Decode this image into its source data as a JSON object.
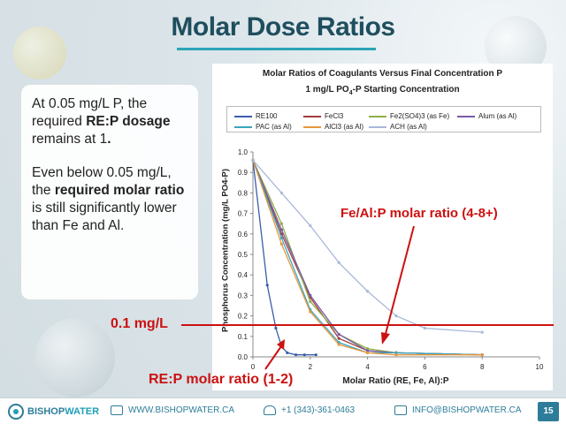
{
  "slide": {
    "title": "Molar Dose Ratios",
    "page_number": "15",
    "colors": {
      "title": "#1f4e5e",
      "accent": "#2aa4b7",
      "annotation": "#cc1111"
    }
  },
  "textbox": {
    "p1_a": "At 0.05 mg/L P, the required ",
    "p1_b": "RE:P dosage",
    "p1_c": " remains at 1",
    "p1_d": ".",
    "p2_a": "Even below 0.05 mg/L, the ",
    "p2_b": "required molar ratio",
    "p2_c": " is still significantly lower than Fe and Al."
  },
  "annotations": {
    "fe_al": "Fe/Al:P molar ratio (4-8+)",
    "line": "0.1 mg/L",
    "re": "RE:P molar ratio (1-2)"
  },
  "footer": {
    "brand_a": "BISHOP",
    "brand_b": "WATER",
    "web": "WWW.BISHOPWATER.CA",
    "phone": "+1 (343)-361-0463",
    "email": "INFO@BISHOPWATER.CA"
  },
  "chart_data": {
    "type": "line",
    "title": "Molar Ratios of Coagulants Versus Final Concentration P",
    "subtitle_a": "1 mg/L PO",
    "subtitle_sub": "4",
    "subtitle_b": "-P Starting Concentration",
    "xlabel": "Molar Ratio (RE, Fe, Al):P",
    "ylabel": "Phosphorus Concentration (mg/L PO4-P)",
    "xlim": [
      0,
      10
    ],
    "ylim": [
      0,
      1.0
    ],
    "x_ticks": [
      "0",
      "2",
      "4",
      "6",
      "8",
      "10"
    ],
    "y_ticks": [
      "0.0",
      "0.1",
      "0.2",
      "0.3",
      "0.4",
      "0.5",
      "0.6",
      "0.7",
      "0.8",
      "0.9",
      "1.0"
    ],
    "reference_line_y": 0.1,
    "legend_placement": "top",
    "series": [
      {
        "name": "RE100",
        "color": "#3a5ea8",
        "x": [
          0,
          0.5,
          0.8,
          1.0,
          1.2,
          1.5,
          1.8,
          2.2
        ],
        "y": [
          0.96,
          0.35,
          0.14,
          0.05,
          0.02,
          0.01,
          0.01,
          0.01
        ]
      },
      {
        "name": "FeCl3",
        "color": "#a33b3b",
        "x": [
          0,
          1,
          2,
          3,
          4,
          5,
          8
        ],
        "y": [
          0.96,
          0.6,
          0.29,
          0.09,
          0.03,
          0.02,
          0.01
        ]
      },
      {
        "name": "Fe2(SO4)3 (as Fe)",
        "color": "#8db046",
        "x": [
          0,
          1,
          2,
          3,
          4,
          5,
          8
        ],
        "y": [
          0.96,
          0.65,
          0.27,
          0.11,
          0.04,
          0.02,
          0.01
        ]
      },
      {
        "name": "Alum (as Al)",
        "color": "#7a5aa8",
        "x": [
          0,
          1,
          2,
          3,
          4,
          5,
          8
        ],
        "y": [
          0.96,
          0.62,
          0.3,
          0.11,
          0.03,
          0.02,
          0.01
        ]
      },
      {
        "name": "PAC (as Al)",
        "color": "#3aa5c0",
        "x": [
          0,
          1,
          2,
          3,
          4,
          5,
          8
        ],
        "y": [
          0.96,
          0.58,
          0.23,
          0.07,
          0.02,
          0.02,
          0.01
        ]
      },
      {
        "name": "AlCl3 (as Al)",
        "color": "#e8963b",
        "x": [
          0,
          1,
          2,
          3,
          4,
          5,
          8
        ],
        "y": [
          0.96,
          0.55,
          0.22,
          0.06,
          0.02,
          0.01,
          0.01
        ]
      },
      {
        "name": "ACH (as Al)",
        "color": "#a9b8d8",
        "x": [
          0,
          1,
          2,
          3,
          4,
          5,
          6,
          8
        ],
        "y": [
          0.96,
          0.8,
          0.64,
          0.46,
          0.32,
          0.2,
          0.14,
          0.12
        ]
      }
    ]
  }
}
